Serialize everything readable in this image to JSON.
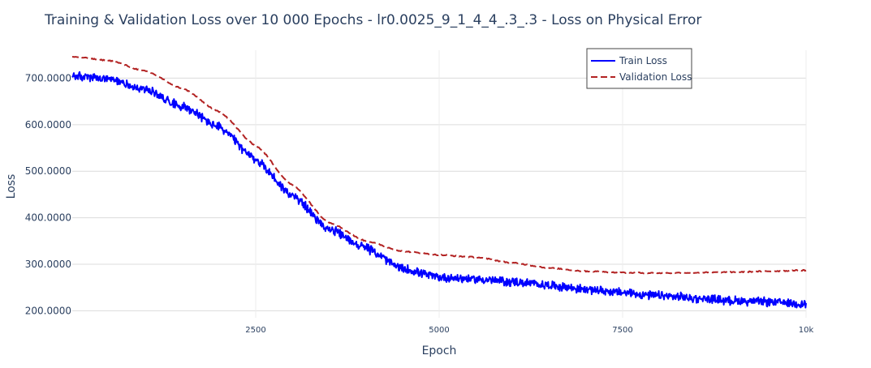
{
  "chart_data": {
    "type": "line",
    "title": "Training & Validation Loss over 10 000 Epochs - lr0.0025_9_1_4_4_.3_.3 - Loss on Physical Error",
    "xlabel": "Epoch",
    "ylabel": "Loss",
    "xlim": [
      0,
      10000
    ],
    "ylim": [
      185,
      760
    ],
    "x_ticks": [
      {
        "value": 2500,
        "label": "2500"
      },
      {
        "value": 5000,
        "label": "5000"
      },
      {
        "value": 7500,
        "label": "7500"
      },
      {
        "value": 10000,
        "label": "10k"
      }
    ],
    "y_ticks": [
      {
        "value": 200,
        "label": "200.0000"
      },
      {
        "value": 300,
        "label": "300.0000"
      },
      {
        "value": 400,
        "label": "400.0000"
      },
      {
        "value": 500,
        "label": "500.0000"
      },
      {
        "value": 600,
        "label": "600.0000"
      },
      {
        "value": 700,
        "label": "700.0000"
      }
    ],
    "grid": true,
    "legend_position": "top-right",
    "series": [
      {
        "name": "Train Loss",
        "color": "#0000ff",
        "style": "solid",
        "noise_amplitude": 8,
        "x": [
          0,
          500,
          1000,
          1500,
          2000,
          2500,
          3000,
          3500,
          4000,
          4500,
          5000,
          5500,
          6000,
          6500,
          7000,
          7500,
          8000,
          8500,
          9000,
          9500,
          10000
        ],
        "y": [
          705,
          697,
          675,
          640,
          595,
          525,
          447,
          375,
          335,
          290,
          272,
          268,
          262,
          255,
          246,
          239,
          232,
          227,
          222,
          219,
          215
        ]
      },
      {
        "name": "Validation Loss",
        "color": "#b22222",
        "style": "dash",
        "noise_amplitude": 1.2,
        "x": [
          0,
          500,
          1000,
          1500,
          2000,
          2500,
          3000,
          3500,
          4000,
          4500,
          5000,
          5500,
          6000,
          6500,
          7000,
          7500,
          8000,
          8500,
          9000,
          9500,
          10000
        ],
        "y": [
          746,
          738,
          715,
          678,
          628,
          555,
          470,
          390,
          350,
          328,
          320,
          315,
          303,
          292,
          285,
          282,
          281,
          282,
          283,
          285,
          287
        ]
      }
    ]
  }
}
